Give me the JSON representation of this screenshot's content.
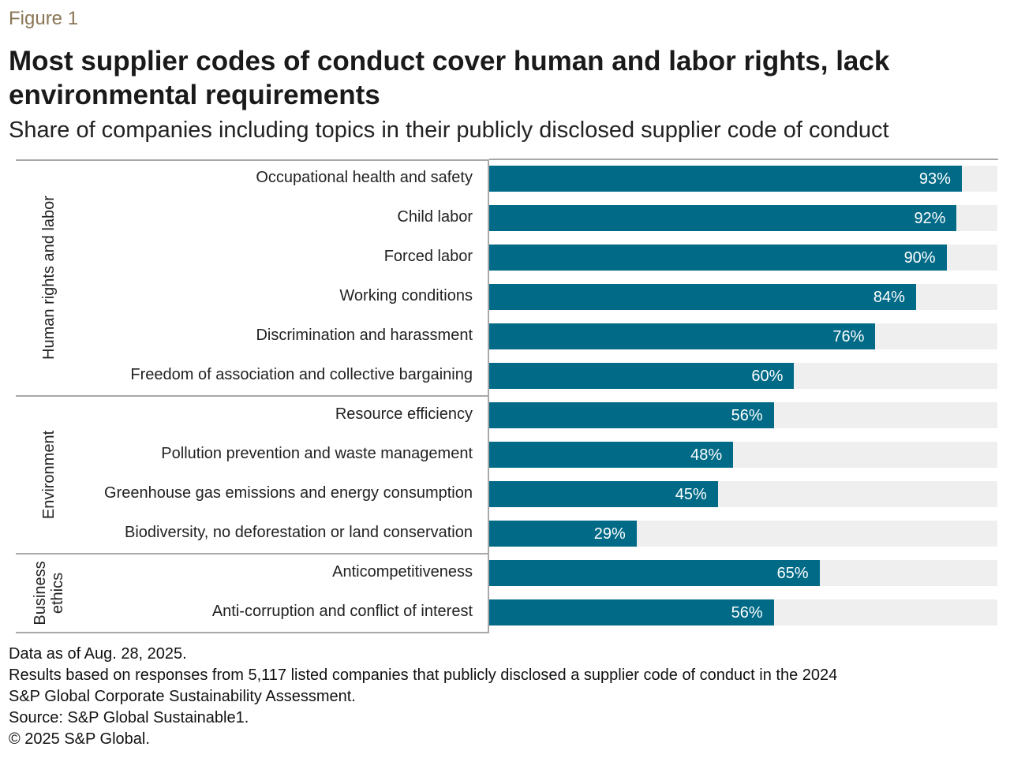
{
  "figure_label": "Figure 1",
  "title": "Most supplier codes of conduct cover human and labor rights, lack environmental requirements",
  "subtitle": "Share of companies including topics in their publicly disclosed supplier code of conduct",
  "colors": {
    "bar": "#006a87",
    "track": "#efefef",
    "figure_label": "#8b7656"
  },
  "chart_data": {
    "type": "bar",
    "orientation": "horizontal",
    "xlim": [
      0,
      100
    ],
    "unit": "%",
    "groups": [
      {
        "name": "Human rights and labor",
        "categories": [
          "Occupational health and safety",
          "Child labor",
          "Forced labor",
          "Working conditions",
          "Discrimination and harassment",
          "Freedom of association and collective bargaining"
        ],
        "values": [
          93,
          92,
          90,
          84,
          76,
          60
        ],
        "labels": [
          "93%",
          "92%",
          "90%",
          "84%",
          "76%",
          "60%"
        ]
      },
      {
        "name": "Environment",
        "categories": [
          "Resource efficiency",
          "Pollution prevention and waste management",
          "Greenhouse gas emissions and energy consumption",
          "Biodiversity, no deforestation or land conservation"
        ],
        "values": [
          56,
          48,
          45,
          29
        ],
        "labels": [
          "56%",
          "48%",
          "45%",
          "29%"
        ]
      },
      {
        "name_lines": [
          "Business",
          "ethics"
        ],
        "categories": [
          "Anticompetitiveness",
          "Anti-corruption and conflict of interest"
        ],
        "values": [
          65,
          56
        ],
        "labels": [
          "65%",
          "56%"
        ]
      }
    ]
  },
  "notes": [
    "Data as of Aug. 28, 2025.",
    "Results based on responses from 5,117 listed companies that publicly disclosed a supplier code of conduct in the 2024",
    "S&P Global Corporate Sustainability Assessment.",
    "Source: S&P Global Sustainable1.",
    "© 2025 S&P Global."
  ]
}
